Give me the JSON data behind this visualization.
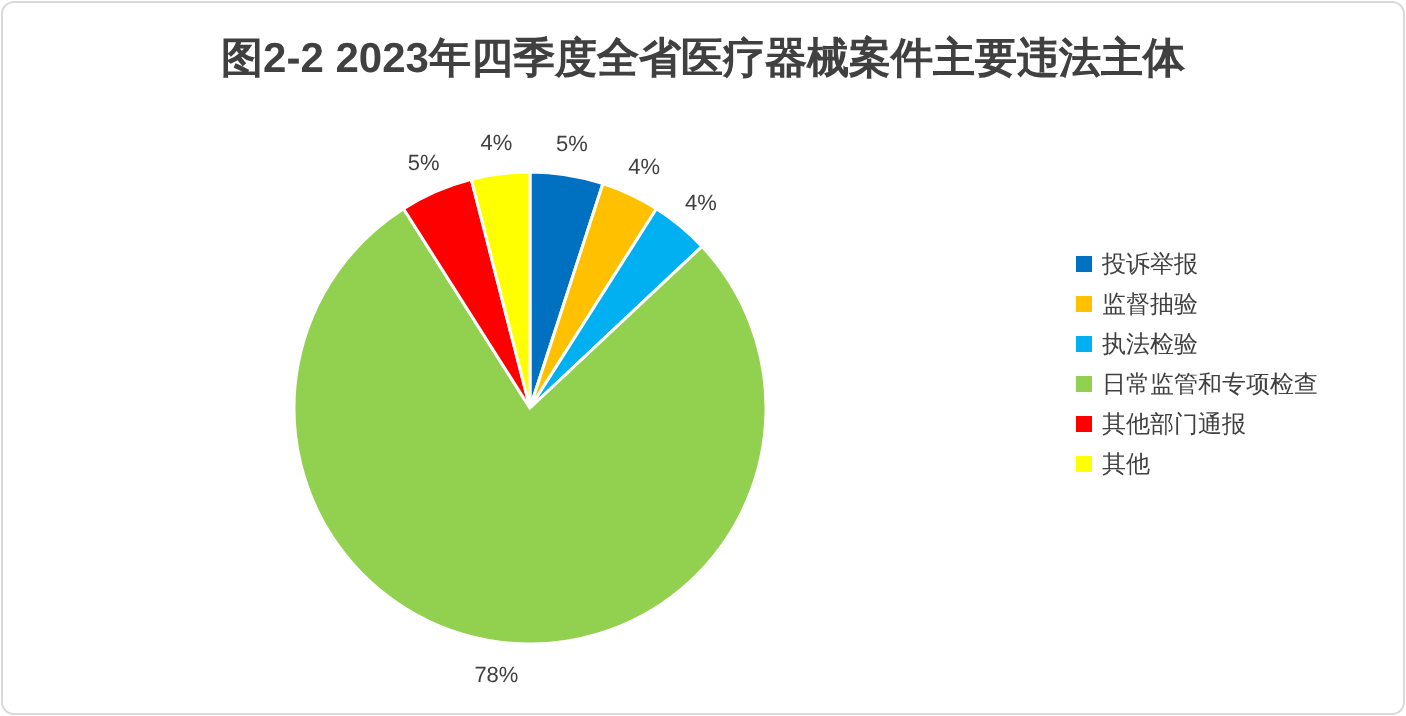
{
  "chart_data": {
    "type": "pie",
    "title": "图2-2  2023年四季度全省医疗器械案件主要违法主体",
    "categories": [
      "投诉举报",
      "监督抽验",
      "执法检验",
      "日常监管和专项检查",
      "其他部门通报",
      "其他"
    ],
    "values": [
      5,
      4,
      4,
      78,
      5,
      4
    ],
    "colors": [
      "#0070c0",
      "#ffc000",
      "#00b0f0",
      "#92d050",
      "#ff0000",
      "#ffff00"
    ],
    "value_labels": [
      "5%",
      "4%",
      "4%",
      "78%",
      "5%",
      "4%"
    ],
    "legend": "right"
  }
}
